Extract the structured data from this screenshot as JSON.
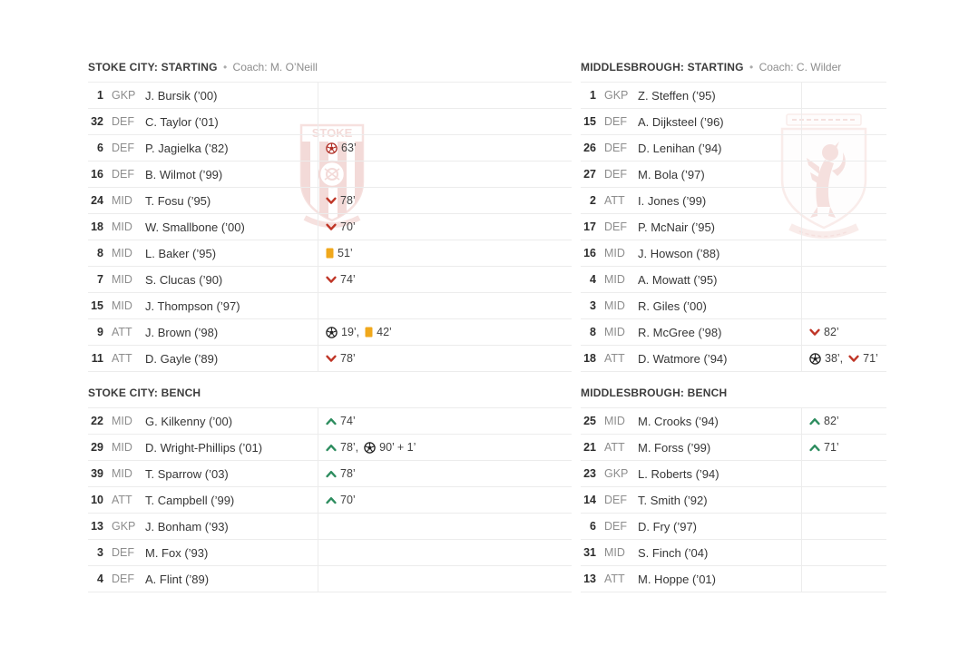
{
  "ui": {
    "separator": "•",
    "coach_prefix": "Coach:"
  },
  "colors": {
    "sub_out": "#bf3526",
    "sub_in": "#2c8c5e",
    "yellow_card": "#f0a81c",
    "goal": "#222222",
    "own_goal": "#b02d24",
    "row_border": "#ececec",
    "text_primary": "#363636",
    "text_secondary": "#8d8d8d",
    "crest_red": "#c0392b"
  },
  "watermarks": {
    "stoke_crest": "stoke-city-crest",
    "middlesbrough_crest": "middlesbrough-crest",
    "stoke_text": "STOKE"
  },
  "teams": [
    {
      "name": "Stoke City",
      "sections": [
        {
          "title": "STOKE CITY: STARTING",
          "coach": "Coach: M. O’Neill",
          "players": [
            {
              "number": "1",
              "position": "GKP",
              "name": "J. Bursik (’00)",
              "events": []
            },
            {
              "number": "32",
              "position": "DEF",
              "name": "C. Taylor (’01)",
              "events": []
            },
            {
              "number": "6",
              "position": "DEF",
              "name": "P. Jagielka (’82)",
              "events": [
                {
                  "type": "own-goal",
                  "minute": "63’"
                }
              ]
            },
            {
              "number": "16",
              "position": "DEF",
              "name": "B. Wilmot (’99)",
              "events": []
            },
            {
              "number": "24",
              "position": "MID",
              "name": "T. Fosu (’95)",
              "events": [
                {
                  "type": "sub-out",
                  "minute": "78’"
                }
              ]
            },
            {
              "number": "18",
              "position": "MID",
              "name": "W. Smallbone (’00)",
              "events": [
                {
                  "type": "sub-out",
                  "minute": "70’"
                }
              ]
            },
            {
              "number": "8",
              "position": "MID",
              "name": "L. Baker (’95)",
              "events": [
                {
                  "type": "yellow",
                  "minute": "51’"
                }
              ]
            },
            {
              "number": "7",
              "position": "MID",
              "name": "S. Clucas (’90)",
              "events": [
                {
                  "type": "sub-out",
                  "minute": "74’"
                }
              ]
            },
            {
              "number": "15",
              "position": "MID",
              "name": "J. Thompson (’97)",
              "events": []
            },
            {
              "number": "9",
              "position": "ATT",
              "name": "J. Brown (’98)",
              "events": [
                {
                  "type": "goal",
                  "minute": "19’"
                },
                {
                  "type": "yellow",
                  "minute": "42’"
                }
              ]
            },
            {
              "number": "11",
              "position": "ATT",
              "name": "D. Gayle (’89)",
              "events": [
                {
                  "type": "sub-out",
                  "minute": "78’"
                }
              ]
            }
          ]
        },
        {
          "title": "STOKE CITY: BENCH",
          "coach": null,
          "players": [
            {
              "number": "22",
              "position": "MID",
              "name": "G. Kilkenny (’00)",
              "events": [
                {
                  "type": "sub-in",
                  "minute": "74’"
                }
              ]
            },
            {
              "number": "29",
              "position": "MID",
              "name": "D. Wright-Phillips (’01)",
              "events": [
                {
                  "type": "sub-in",
                  "minute": "78’"
                },
                {
                  "type": "goal",
                  "minute": "90’ + 1’"
                }
              ]
            },
            {
              "number": "39",
              "position": "MID",
              "name": "T. Sparrow (’03)",
              "events": [
                {
                  "type": "sub-in",
                  "minute": "78’"
                }
              ]
            },
            {
              "number": "10",
              "position": "ATT",
              "name": "T. Campbell (’99)",
              "events": [
                {
                  "type": "sub-in",
                  "minute": "70’"
                }
              ]
            },
            {
              "number": "13",
              "position": "GKP",
              "name": "J. Bonham (’93)",
              "events": []
            },
            {
              "number": "3",
              "position": "DEF",
              "name": "M. Fox (’93)",
              "events": []
            },
            {
              "number": "4",
              "position": "DEF",
              "name": "A. Flint (’89)",
              "events": []
            }
          ]
        }
      ]
    },
    {
      "name": "Middlesbrough",
      "sections": [
        {
          "title": "MIDDLESBROUGH: STARTING",
          "coach": "Coach: C. Wilder",
          "players": [
            {
              "number": "1",
              "position": "GKP",
              "name": "Z. Steffen (’95)",
              "events": []
            },
            {
              "number": "15",
              "position": "DEF",
              "name": "A. Dijksteel (’96)",
              "events": []
            },
            {
              "number": "26",
              "position": "DEF",
              "name": "D. Lenihan (’94)",
              "events": []
            },
            {
              "number": "27",
              "position": "DEF",
              "name": "M. Bola (’97)",
              "events": []
            },
            {
              "number": "2",
              "position": "ATT",
              "name": "I. Jones (’99)",
              "events": []
            },
            {
              "number": "17",
              "position": "DEF",
              "name": "P. McNair (’95)",
              "events": []
            },
            {
              "number": "16",
              "position": "MID",
              "name": "J. Howson (’88)",
              "events": []
            },
            {
              "number": "4",
              "position": "MID",
              "name": "A. Mowatt (’95)",
              "events": []
            },
            {
              "number": "3",
              "position": "MID",
              "name": "R. Giles (’00)",
              "events": []
            },
            {
              "number": "8",
              "position": "MID",
              "name": "R. McGree (’98)",
              "events": [
                {
                  "type": "sub-out",
                  "minute": "82’"
                }
              ]
            },
            {
              "number": "18",
              "position": "ATT",
              "name": "D. Watmore (’94)",
              "events": [
                {
                  "type": "goal",
                  "minute": "38’"
                },
                {
                  "type": "sub-out",
                  "minute": "71’"
                }
              ]
            }
          ]
        },
        {
          "title": "MIDDLESBROUGH: BENCH",
          "coach": null,
          "players": [
            {
              "number": "25",
              "position": "MID",
              "name": "M. Crooks (’94)",
              "events": [
                {
                  "type": "sub-in",
                  "minute": "82’"
                }
              ]
            },
            {
              "number": "21",
              "position": "ATT",
              "name": "M. Forss (’99)",
              "events": [
                {
                  "type": "sub-in",
                  "minute": "71’"
                }
              ]
            },
            {
              "number": "23",
              "position": "GKP",
              "name": "L. Roberts (’94)",
              "events": []
            },
            {
              "number": "14",
              "position": "DEF",
              "name": "T. Smith (’92)",
              "events": []
            },
            {
              "number": "6",
              "position": "DEF",
              "name": "D. Fry (’97)",
              "events": []
            },
            {
              "number": "31",
              "position": "MID",
              "name": "S. Finch (’04)",
              "events": []
            },
            {
              "number": "13",
              "position": "ATT",
              "name": "M. Hoppe (’01)",
              "events": []
            }
          ]
        }
      ]
    }
  ]
}
